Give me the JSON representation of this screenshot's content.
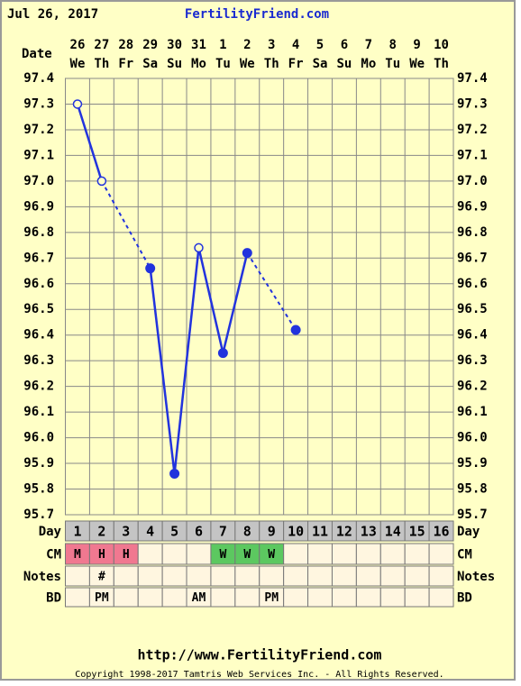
{
  "header": {
    "date": "Jul 26, 2017",
    "site": "FertilityFriend.com"
  },
  "chart_data": {
    "type": "line",
    "x_label": "Date",
    "dates": [
      "26",
      "27",
      "28",
      "29",
      "30",
      "31",
      "1",
      "2",
      "3",
      "4",
      "5",
      "6",
      "7",
      "8",
      "9",
      "10"
    ],
    "weekdays": [
      "We",
      "Th",
      "Fr",
      "Sa",
      "Su",
      "Mo",
      "Tu",
      "We",
      "Th",
      "Fr",
      "Sa",
      "Su",
      "Mo",
      "Tu",
      "We",
      "Th"
    ],
    "series": [
      {
        "color": "#2233dd",
        "values": [
          97.3,
          97.0,
          null,
          96.66,
          95.86,
          96.74,
          96.33,
          96.72,
          null,
          96.42,
          null,
          null,
          null,
          null,
          null,
          null
        ],
        "markers": [
          "open",
          "open",
          null,
          "filled",
          "filled",
          "open",
          "filled",
          "filled",
          null,
          "filled",
          null,
          null,
          null,
          null,
          null,
          null
        ]
      }
    ],
    "ylim": [
      95.7,
      97.4
    ],
    "yticks": [
      97.4,
      97.3,
      97.2,
      97.1,
      {
        "value": 97.0,
        "label": "97.0"
      },
      96.9,
      96.8,
      96.7,
      96.6,
      96.5,
      96.4,
      96.3,
      96.2,
      96.1,
      {
        "value": 96.0,
        "label": "96.0"
      },
      95.9,
      95.8,
      95.7
    ],
    "grid": true
  },
  "table": {
    "rows": [
      {
        "label": "Day",
        "cells": [
          1,
          2,
          3,
          4,
          5,
          6,
          7,
          8,
          9,
          10,
          11,
          12,
          13,
          14,
          15,
          16
        ]
      },
      {
        "label": "CM",
        "cells": [
          "M",
          "H",
          "H",
          null,
          null,
          null,
          "W",
          "W",
          "W",
          null,
          null,
          null,
          null,
          null,
          null,
          null
        ],
        "colors": [
          "#f07890",
          "#f07890",
          "#f07890",
          null,
          null,
          null,
          "#5cc860",
          "#5cc860",
          "#5cc860",
          null,
          null,
          null,
          null,
          null,
          null,
          null
        ]
      },
      {
        "label": "Notes",
        "cells": [
          null,
          "#",
          null,
          null,
          null,
          null,
          null,
          null,
          null,
          null,
          null,
          null,
          null,
          null,
          null,
          null
        ]
      },
      {
        "label": "BD",
        "cells": [
          null,
          "PM",
          null,
          null,
          null,
          "AM",
          null,
          null,
          "PM",
          null,
          null,
          null,
          null,
          null,
          null,
          null
        ]
      }
    ]
  },
  "footer": {
    "url": "http://www.FertilityFriend.com",
    "copyright": "Copyright 1998-2017 Tamtris Web Services Inc. - All Rights Reserved."
  }
}
